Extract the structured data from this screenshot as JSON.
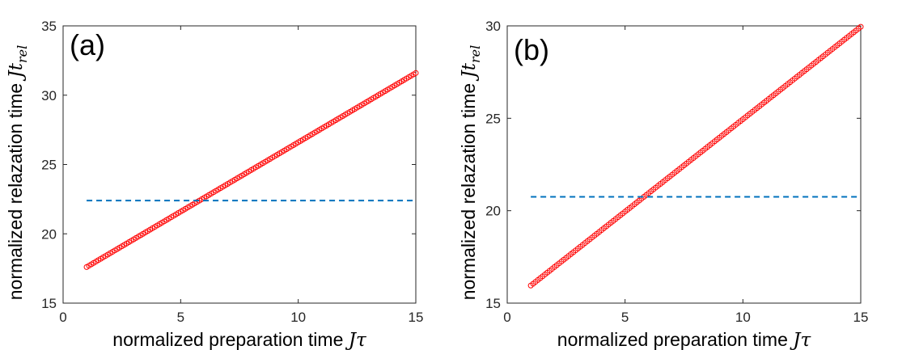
{
  "chart_data": [
    {
      "type": "scatter",
      "panel_label": "(a)",
      "xlabel": "normalized preparation time ",
      "xlabel_math": "Jτ",
      "ylabel": "normalized relazation time ",
      "ylabel_math": "Jt",
      "ylabel_sub": "rel",
      "xlim": [
        0,
        15
      ],
      "ylim": [
        15,
        35
      ],
      "xticks": [
        0,
        5,
        10,
        15
      ],
      "yticks": [
        15,
        20,
        25,
        30,
        35
      ],
      "grid": false,
      "series": [
        {
          "marker": "circle-open",
          "color": "#ff0000",
          "x_start": 1,
          "x_end": 15,
          "x_step": 0.1,
          "y_start": 17.6,
          "y_end": 31.6
        },
        {
          "style": "dashed-line",
          "color": "#0072bd",
          "x": [
            1,
            15
          ],
          "y": [
            22.4,
            22.4
          ]
        }
      ]
    },
    {
      "type": "scatter",
      "panel_label": "(b)",
      "xlabel": "normalized preparation time ",
      "xlabel_math": "Jτ",
      "ylabel": "normalized relazation time ",
      "ylabel_math": "Jt",
      "ylabel_sub": "rel",
      "xlim": [
        0,
        15
      ],
      "ylim": [
        15,
        30
      ],
      "xticks": [
        0,
        5,
        10,
        15
      ],
      "yticks": [
        15,
        20,
        25,
        30
      ],
      "grid": false,
      "series": [
        {
          "marker": "circle-open",
          "color": "#ff0000",
          "x_start": 1,
          "x_end": 15,
          "x_step": 0.1,
          "y_start": 15.95,
          "y_end": 29.95
        },
        {
          "style": "dashed-line",
          "color": "#0072bd",
          "x": [
            1,
            15
          ],
          "y": [
            20.75,
            20.75
          ]
        }
      ]
    }
  ]
}
